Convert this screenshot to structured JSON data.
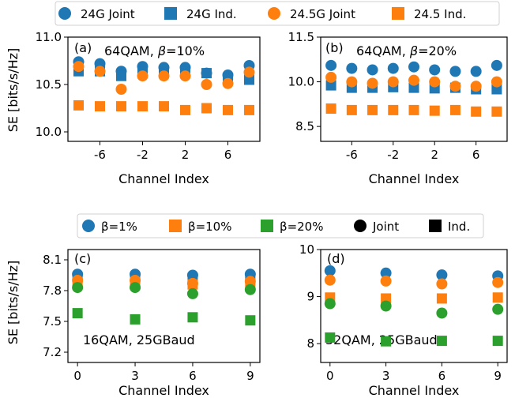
{
  "colors": {
    "blue": "#1f77b4",
    "orange": "#ff7f0e",
    "green": "#2ca02c",
    "black": "#000000"
  },
  "top_legend": [
    {
      "label": "24G Joint",
      "marker": "circle",
      "color": "#1f77b4"
    },
    {
      "label": "24G Ind.",
      "marker": "square",
      "color": "#1f77b4"
    },
    {
      "label": "24.5G Joint",
      "marker": "circle",
      "color": "#ff7f0e"
    },
    {
      "label": "24.5 Ind.",
      "marker": "square",
      "color": "#ff7f0e"
    }
  ],
  "bottom_legend": [
    {
      "label": "β=1%",
      "marker": "circle",
      "color": "#1f77b4"
    },
    {
      "label": "β=10%",
      "marker": "square",
      "color": "#ff7f0e"
    },
    {
      "label": "β=20%",
      "marker": "square",
      "color": "#2ca02c"
    },
    {
      "label": "Joint",
      "marker": "circle",
      "color": "#000000"
    },
    {
      "label": "Ind.",
      "marker": "square",
      "color": "#000000"
    }
  ],
  "ylabel_top": "SE [bits/s/Hz]",
  "ylabel_bottom": "SE [bits/s/Hz]",
  "chart_data": [
    {
      "type": "scatter",
      "panel": "(a)",
      "annotation_prefix": "64QAM, ",
      "annotation_beta": "β=10%",
      "xlabel": "Channel Index",
      "ylabel": "SE [bits/s/Hz]",
      "xlim": [
        -9,
        9
      ],
      "ylim": [
        9.9,
        11.0
      ],
      "xticks": [
        "-6",
        "-2",
        "2",
        "6"
      ],
      "yticks": [
        "10.0",
        "10.5",
        "11.0"
      ],
      "x": [
        -8,
        -6,
        -4,
        -2,
        0,
        2,
        4,
        6,
        8
      ],
      "series": [
        {
          "name": "24G Joint",
          "marker": "circle",
          "color": "#1f77b4",
          "values": [
            10.74,
            10.72,
            10.64,
            10.69,
            10.68,
            10.68,
            10.62,
            10.6,
            10.7
          ]
        },
        {
          "name": "24G Ind.",
          "marker": "square",
          "color": "#1f77b4",
          "values": [
            10.64,
            10.64,
            10.59,
            10.63,
            10.62,
            10.63,
            10.62,
            10.57,
            10.55
          ]
        },
        {
          "name": "24.5G Joint",
          "marker": "circle",
          "color": "#ff7f0e",
          "values": [
            10.69,
            10.64,
            10.45,
            10.59,
            10.59,
            10.59,
            10.5,
            10.51,
            10.63
          ]
        },
        {
          "name": "24.5 Ind.",
          "marker": "square",
          "color": "#ff7f0e",
          "values": [
            10.28,
            10.27,
            10.27,
            10.27,
            10.27,
            10.23,
            10.25,
            10.23,
            10.23
          ]
        }
      ]
    },
    {
      "type": "scatter",
      "panel": "(b)",
      "annotation_prefix": "64QAM, ",
      "annotation_beta": "β=20%",
      "xlabel": "Channel Index",
      "ylabel": "",
      "xlim": [
        -9,
        9
      ],
      "ylim": [
        8.0,
        11.5
      ],
      "xticks": [
        "-6",
        "-2",
        "2",
        "6"
      ],
      "yticks": [
        "8.5",
        "10.0",
        "11.5"
      ],
      "x": [
        -8,
        -6,
        -4,
        -2,
        0,
        2,
        4,
        6,
        8
      ],
      "series": [
        {
          "name": "24G Joint",
          "marker": "circle",
          "color": "#1f77b4",
          "values": [
            10.55,
            10.45,
            10.4,
            10.45,
            10.5,
            10.4,
            10.35,
            10.35,
            10.55
          ]
        },
        {
          "name": "24G Ind.",
          "marker": "square",
          "color": "#1f77b4",
          "values": [
            9.88,
            9.8,
            9.8,
            9.82,
            9.8,
            9.78,
            9.8,
            9.75,
            9.75
          ]
        },
        {
          "name": "24.5G Joint",
          "marker": "circle",
          "color": "#ff7f0e",
          "values": [
            10.15,
            10.0,
            9.95,
            10.0,
            10.05,
            10.0,
            9.85,
            9.85,
            10.0
          ]
        },
        {
          "name": "24.5 Ind.",
          "marker": "square",
          "color": "#ff7f0e",
          "values": [
            9.1,
            9.05,
            9.05,
            9.05,
            9.05,
            9.03,
            9.05,
            9.0,
            9.0
          ]
        }
      ]
    },
    {
      "type": "scatter",
      "panel": "(c)",
      "annotation_prefix": "16QAM, 25GBaud",
      "annotation_beta": "",
      "xlabel": "Channel Index",
      "ylabel": "SE [bits/s/Hz]",
      "xlim": [
        -0.5,
        9.5
      ],
      "ylim": [
        7.1,
        8.2
      ],
      "xticks": [
        "0",
        "3",
        "6",
        "9"
      ],
      "yticks": [
        "7.2",
        "7.5",
        "7.8",
        "8.1"
      ],
      "x": [
        0,
        3,
        6,
        9
      ],
      "series": [
        {
          "name": "β=1% Joint",
          "marker": "circle",
          "color": "#1f77b4",
          "values": [
            7.96,
            7.96,
            7.95,
            7.96
          ]
        },
        {
          "name": "β=1% Ind.",
          "marker": "square",
          "color": "#1f77b4",
          "values": [
            7.93,
            7.93,
            7.92,
            7.92
          ]
        },
        {
          "name": "β=10% Joint",
          "marker": "circle",
          "color": "#ff7f0e",
          "values": [
            7.9,
            7.9,
            7.87,
            7.89
          ]
        },
        {
          "name": "β=10% Ind.",
          "marker": "square",
          "color": "#ff7f0e",
          "values": [
            7.88,
            7.88,
            7.86,
            7.87
          ]
        },
        {
          "name": "β=20% Joint",
          "marker": "circle",
          "color": "#2ca02c",
          "values": [
            7.83,
            7.83,
            7.77,
            7.81
          ]
        },
        {
          "name": "β=20% Ind.",
          "marker": "square",
          "color": "#2ca02c",
          "values": [
            7.58,
            7.52,
            7.54,
            7.51
          ]
        }
      ]
    },
    {
      "type": "scatter",
      "panel": "(d)",
      "annotation_prefix": "32QAM, 25GBaud",
      "annotation_beta": "",
      "xlabel": "Channel Index",
      "ylabel": "",
      "xlim": [
        -0.5,
        9.5
      ],
      "ylim": [
        7.6,
        10.0
      ],
      "xticks": [
        "0",
        "3",
        "6",
        "9"
      ],
      "yticks": [
        "8",
        "9",
        "10"
      ],
      "x": [
        0,
        3,
        6,
        9
      ],
      "series": [
        {
          "name": "β=1% Joint",
          "marker": "circle",
          "color": "#1f77b4",
          "values": [
            9.55,
            9.5,
            9.46,
            9.44
          ]
        },
        {
          "name": "β=10% Joint",
          "marker": "circle",
          "color": "#ff7f0e",
          "values": [
            9.35,
            9.33,
            9.27,
            9.3
          ]
        },
        {
          "name": "β=10% Ind.",
          "marker": "square",
          "color": "#ff7f0e",
          "values": [
            8.98,
            8.96,
            8.96,
            8.98
          ]
        },
        {
          "name": "β=20% Joint",
          "marker": "circle",
          "color": "#2ca02c",
          "values": [
            8.85,
            8.8,
            8.65,
            8.73
          ]
        },
        {
          "name": "β=20% Ind.",
          "marker": "square",
          "color": "#2ca02c",
          "values": [
            8.13,
            8.05,
            8.06,
            8.06
          ]
        }
      ]
    }
  ]
}
